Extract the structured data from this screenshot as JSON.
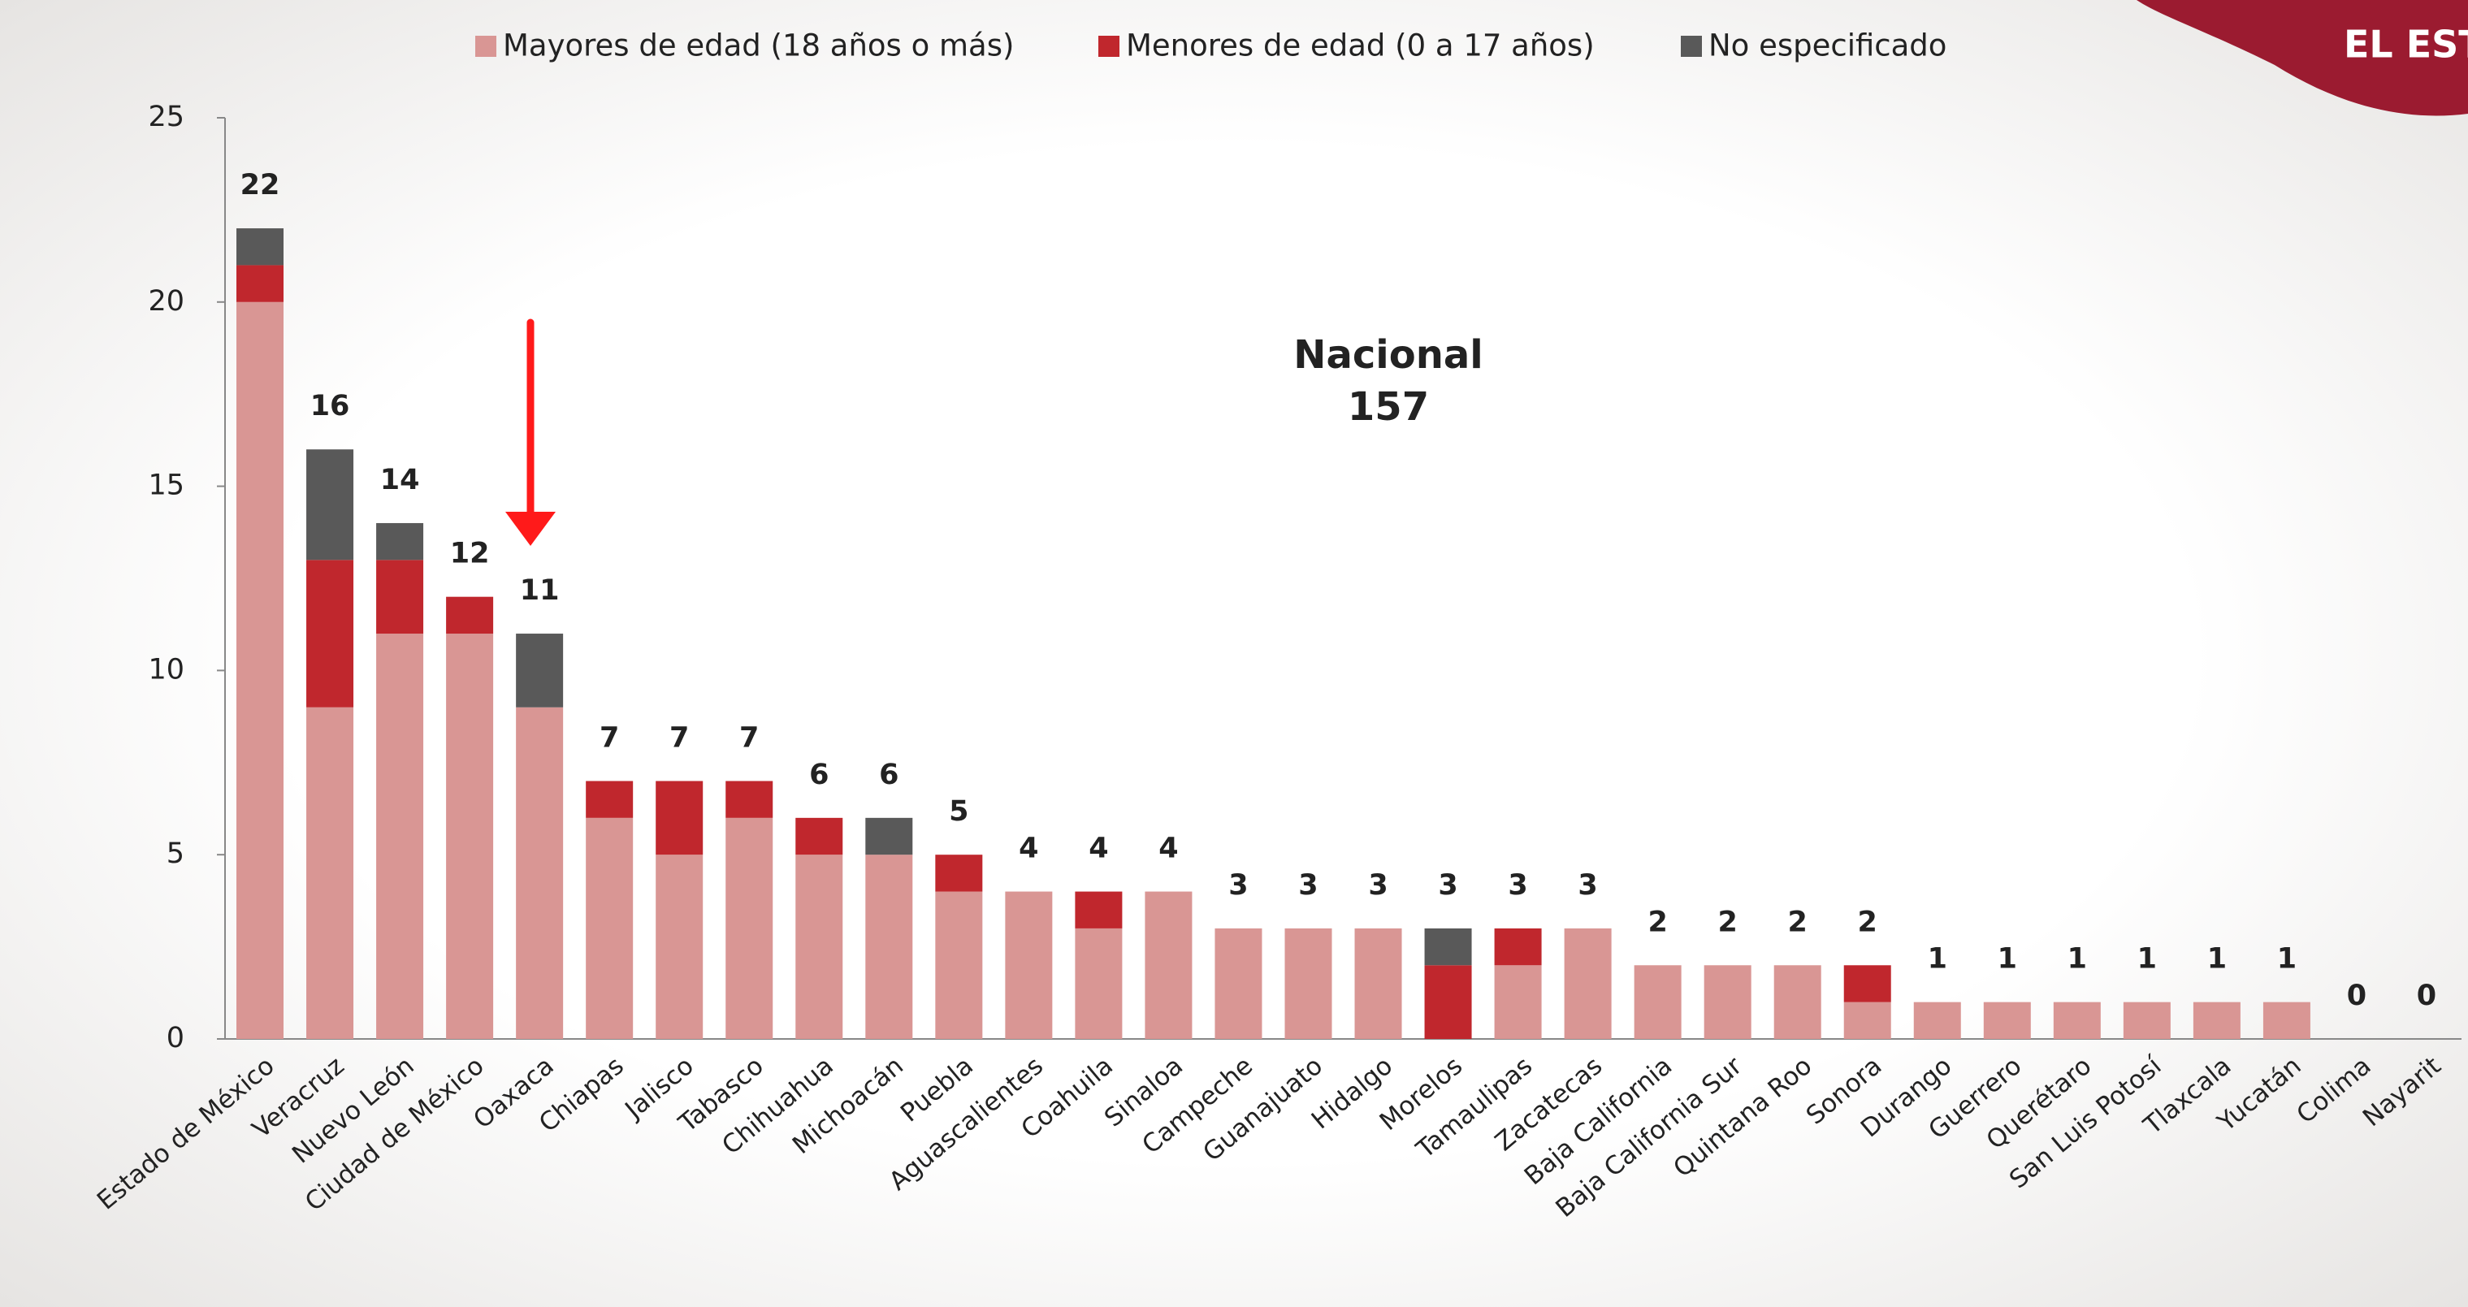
{
  "chart_data": {
    "type": "stacked_bar",
    "categories": [
      "Estado de México",
      "Veracruz",
      "Nuevo León",
      "Ciudad de México",
      "Oaxaca",
      "Chiapas",
      "Jalisco",
      "Tabasco",
      "Chihuahua",
      "Michoacán",
      "Puebla",
      "Aguascalientes",
      "Coahuila",
      "Sinaloa",
      "Campeche",
      "Guanajuato",
      "Hidalgo",
      "Morelos",
      "Tamaulipas",
      "Zacatecas",
      "Baja California",
      "Baja California Sur",
      "Quintana Roo",
      "Sonora",
      "Durango",
      "Guerrero",
      "Querétaro",
      "San Luis Potosí",
      "Tlaxcala",
      "Yucatán",
      "Colima",
      "Nayarit"
    ],
    "series": [
      {
        "name": "Mayores de edad (18 años o más)",
        "color": "#d99694",
        "values": [
          20,
          9,
          11,
          11,
          9,
          6,
          5,
          6,
          5,
          5,
          4,
          4,
          3,
          4,
          3,
          3,
          3,
          0,
          2,
          3,
          2,
          2,
          2,
          1,
          1,
          1,
          1,
          1,
          1,
          1,
          0,
          0
        ]
      },
      {
        "name": "Menores de edad (0 a 17 años)",
        "color": "#c0272d",
        "values": [
          1,
          4,
          2,
          1,
          0,
          1,
          2,
          1,
          1,
          0,
          1,
          0,
          1,
          0,
          0,
          0,
          0,
          2,
          1,
          0,
          0,
          0,
          0,
          1,
          0,
          0,
          0,
          0,
          0,
          0,
          0,
          0
        ]
      },
      {
        "name": "No especificado",
        "color": "#595959",
        "values": [
          1,
          3,
          1,
          0,
          2,
          0,
          0,
          0,
          0,
          1,
          0,
          0,
          0,
          0,
          0,
          0,
          0,
          1,
          0,
          0,
          0,
          0,
          0,
          0,
          0,
          0,
          0,
          0,
          0,
          0,
          0,
          0
        ]
      }
    ],
    "totals": [
      22,
      16,
      14,
      12,
      11,
      7,
      7,
      7,
      6,
      6,
      5,
      4,
      4,
      4,
      3,
      3,
      3,
      3,
      3,
      3,
      2,
      2,
      2,
      2,
      1,
      1,
      1,
      1,
      1,
      1,
      0,
      0
    ],
    "ylim": [
      0,
      25
    ],
    "yticks": [
      0,
      5,
      10,
      15,
      20,
      25
    ],
    "annotation": [
      "Nacional",
      "157"
    ],
    "legend": "top"
  },
  "logo": "EL EST"
}
